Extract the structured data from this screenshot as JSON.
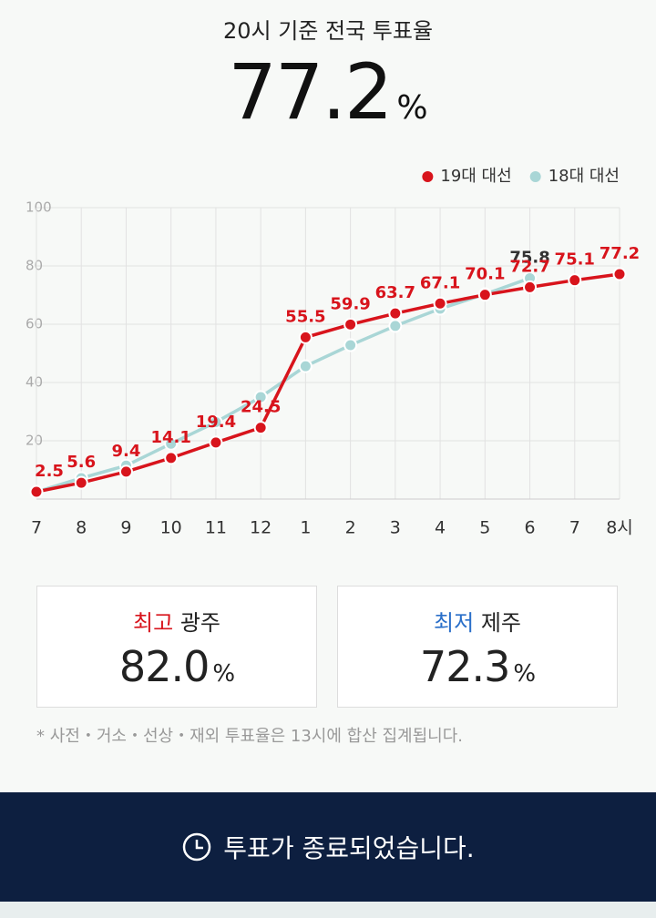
{
  "headline": {
    "title": "20시 기준 전국 투표율",
    "value": "77.2",
    "unit": "%"
  },
  "chart_data": {
    "type": "line",
    "categories": [
      "7",
      "8",
      "9",
      "10",
      "11",
      "12",
      "1",
      "2",
      "3",
      "4",
      "5",
      "6",
      "7",
      "8시"
    ],
    "ylim": [
      0,
      100
    ],
    "yticks": [
      20,
      40,
      60,
      80,
      100
    ],
    "grid": true,
    "legend": "top-right",
    "series": [
      {
        "name": "18대 대선",
        "color": "#a9d6d6",
        "labels": "last",
        "values": [
          2.5,
          7.2,
          11.5,
          19.0,
          26.4,
          35.0,
          45.6,
          52.8,
          59.4,
          65.3,
          70.3,
          75.8,
          null,
          null
        ]
      },
      {
        "name": "19대 대선",
        "color": "#d8141c",
        "labels": "all",
        "values": [
          2.5,
          5.6,
          9.4,
          14.1,
          19.4,
          24.5,
          55.5,
          59.9,
          63.7,
          67.1,
          70.1,
          72.7,
          75.1,
          77.2
        ]
      }
    ]
  },
  "highest": {
    "label": "최고",
    "region": "광주",
    "value": "82.0",
    "unit": "%"
  },
  "lowest": {
    "label": "최저",
    "region": "제주",
    "value": "72.3",
    "unit": "%"
  },
  "footnote": "* 사전・거소・선상・재외 투표율은 13시에 합산 집계됩니다.",
  "status": "투표가 종료되었습니다."
}
